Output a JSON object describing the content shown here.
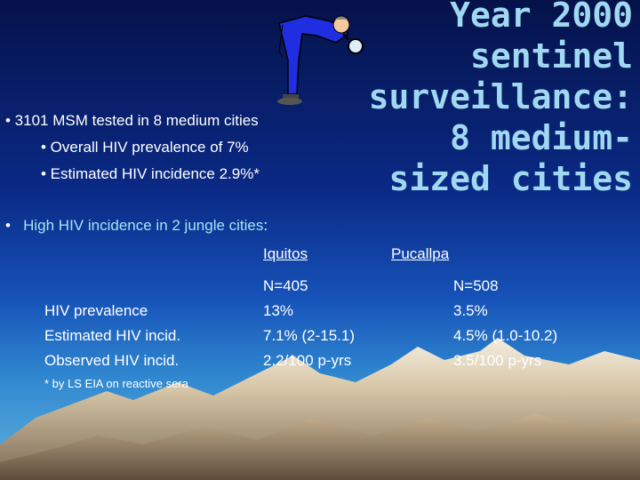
{
  "title": {
    "lines": [
      "Year 2000",
      "sentinel",
      "surveillance:",
      "8 medium-",
      "sized cities"
    ]
  },
  "bullets": {
    "b1": "• 3101 MSM tested in 8 medium cities",
    "b1_sub1": "• Overall HIV prevalence of 7%",
    "b1_sub2": "• Estimated HIV incidence 2.9%*",
    "b2_prefix": "•",
    "b2_text": "High HIV incidence in 2 jungle cities",
    "b2_colon": ":"
  },
  "table": {
    "columns": [
      "Iquitos",
      "Pucallpa"
    ],
    "row_labels": [
      "HIV prevalence",
      "Estimated HIV incid.",
      "Observed HIV incid."
    ],
    "iquitos": [
      "N=405",
      "13%",
      "7.1% (2-15.1)",
      "2.2/100 p-yrs"
    ],
    "pucallpa": [
      "N=508",
      "3.5%",
      "4.5% (1.0-10.2)",
      "3.5/100 p-yrs"
    ]
  },
  "footnote": "* by LS EIA on reactive sera",
  "icons": {
    "figure": "magnifying-glass-man-icon"
  },
  "colors": {
    "title": "#9fd8f0",
    "highlight": "#9fe6f2",
    "text": "#ffffff"
  }
}
